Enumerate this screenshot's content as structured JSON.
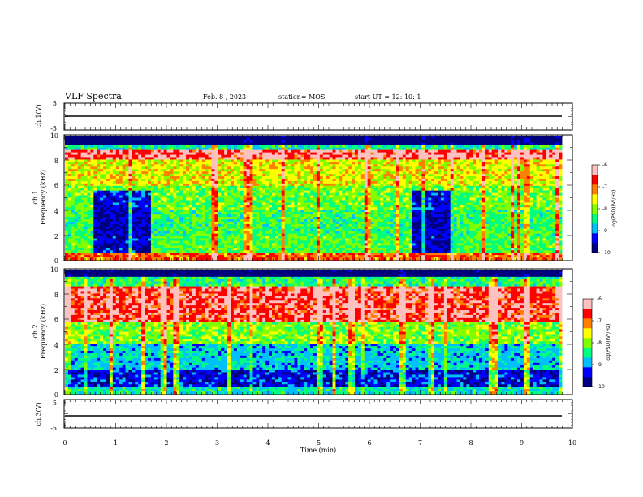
{
  "header": {
    "title": "VLF Spectra",
    "date": "Feb. 8 , 2023",
    "station": "station= MOS",
    "start": "start UT = 12: 10: 1"
  },
  "chart_data": [
    {
      "type": "line",
      "panel": "ch1_voltage",
      "ylabel": "ch.1(V)",
      "ylim": [
        -5,
        5
      ],
      "y_ticks": [
        "5",
        "-5"
      ],
      "series": [
        {
          "x": [
            0,
            10
          ],
          "values": [
            0,
            0
          ]
        }
      ]
    },
    {
      "type": "heatmap",
      "panel": "ch1_spectrum",
      "ylabel": "ch.1\nFrequency (kHz)",
      "ylim": [
        0,
        10
      ],
      "y_ticks": [
        "0",
        "2",
        "4",
        "6",
        "8",
        "10"
      ],
      "xlim": [
        0,
        10
      ],
      "colorbar": {
        "label": "log(PSD)(V²/Hz)",
        "range": [
          -10,
          -6
        ],
        "ticks": [
          "-10",
          "-9",
          "-8",
          "-7",
          "-6"
        ]
      },
      "bands": [
        {
          "fmin": 9.2,
          "fmax": 10.0,
          "level": -10.0
        },
        {
          "fmin": 8.8,
          "fmax": 9.2,
          "level": -8.5
        },
        {
          "fmin": 8.0,
          "fmax": 8.8,
          "level": -6.5
        },
        {
          "fmin": 6.0,
          "fmax": 8.0,
          "level": -7.6
        },
        {
          "fmin": 4.0,
          "fmax": 6.0,
          "level": -8.1
        },
        {
          "fmin": 2.0,
          "fmax": 4.0,
          "level": -8.3
        },
        {
          "fmin": 0.5,
          "fmax": 2.0,
          "level": -8.2
        },
        {
          "fmin": 0.0,
          "fmax": 0.5,
          "level": -7.0
        }
      ],
      "quiet_periods_min": [
        [
          0.6,
          1.7
        ],
        [
          7.0,
          7.8
        ]
      ]
    },
    {
      "type": "heatmap",
      "panel": "ch2_spectrum",
      "ylabel": "ch.2\nFrequency (kHz)",
      "ylim": [
        0,
        10
      ],
      "y_ticks": [
        "0",
        "2",
        "4",
        "6",
        "8",
        "10"
      ],
      "xlim": [
        0,
        10
      ],
      "colorbar": {
        "label": "log(PSD)(V²/Hz)",
        "range": [
          -10,
          -6
        ],
        "ticks": [
          "-10",
          "-9",
          "-8",
          "-7",
          "-6"
        ]
      },
      "bands": [
        {
          "fmin": 9.4,
          "fmax": 10.0,
          "level": -10.0
        },
        {
          "fmin": 8.6,
          "fmax": 9.4,
          "level": -8.4
        },
        {
          "fmin": 5.8,
          "fmax": 8.6,
          "level": -6.6
        },
        {
          "fmin": 4.0,
          "fmax": 5.8,
          "level": -8.0
        },
        {
          "fmin": 2.0,
          "fmax": 4.0,
          "level": -8.8
        },
        {
          "fmin": 0.5,
          "fmax": 2.0,
          "level": -9.4
        },
        {
          "fmin": 0.0,
          "fmax": 0.5,
          "level": -8.6
        }
      ]
    },
    {
      "type": "line",
      "panel": "ch3_voltage",
      "ylabel": "ch.3(V)",
      "ylim": [
        -5,
        5
      ],
      "y_ticks": [
        "5",
        "-5"
      ],
      "xlabel": "Time (min)",
      "xlim": [
        0,
        10
      ],
      "x_ticks": [
        "0",
        "1",
        "2",
        "3",
        "4",
        "5",
        "6",
        "7",
        "8",
        "9",
        "10"
      ],
      "series": [
        {
          "x": [
            0,
            10
          ],
          "values": [
            0,
            0
          ]
        }
      ]
    }
  ],
  "colors": {
    "scale": [
      "#00007f",
      "#0000ff",
      "#00bfff",
      "#00ff7f",
      "#7fff00",
      "#ffff00",
      "#ff8000",
      "#ff0000",
      "#ffc0c0"
    ]
  }
}
